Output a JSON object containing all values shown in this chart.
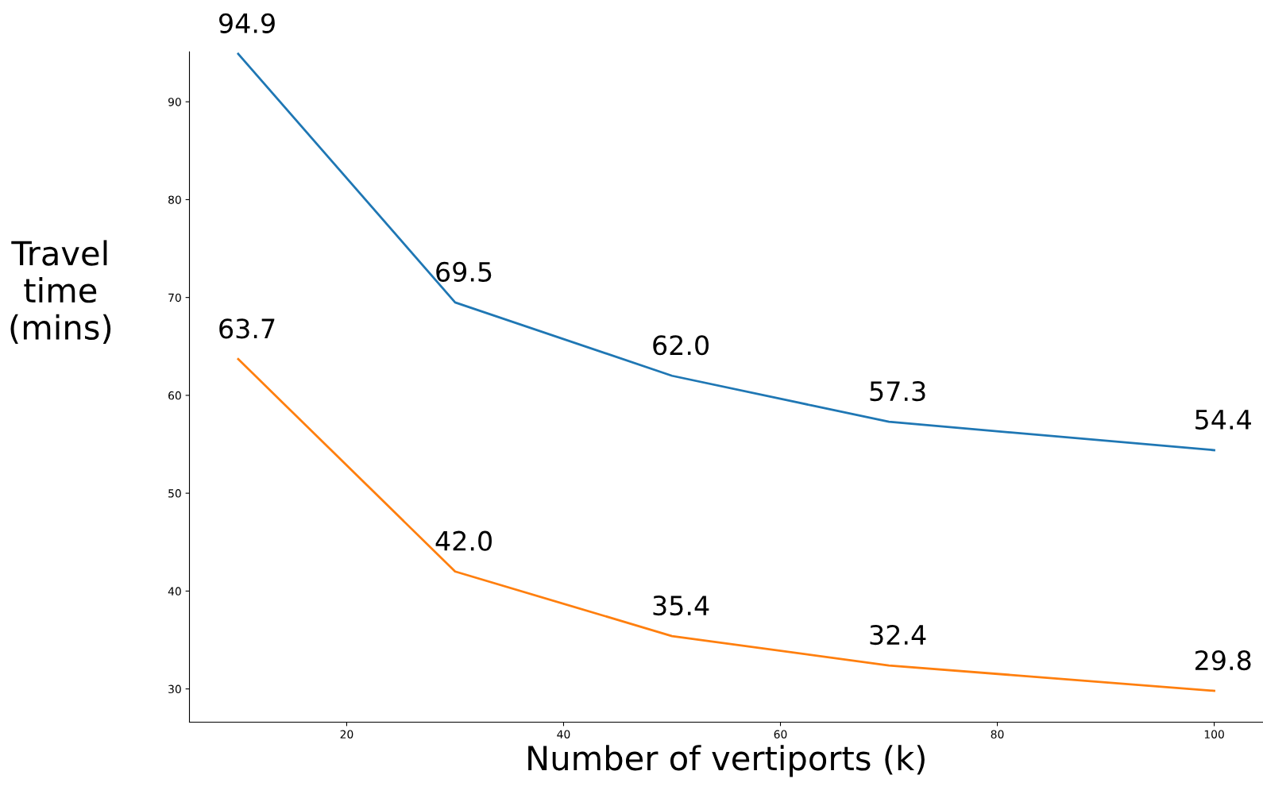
{
  "chart_data": {
    "type": "line",
    "xlabel": "Number of vertiports (k)",
    "ylabel": "Travel\ntime\n(mins)",
    "x": [
      10,
      30,
      50,
      70,
      100
    ],
    "series": [
      {
        "color": "#1f77b4",
        "values": [
          94.9,
          69.5,
          62.0,
          57.3,
          54.4
        ],
        "value_labels": [
          "94.9",
          "69.5",
          "62.0",
          "57.3",
          "54.4"
        ]
      },
      {
        "color": "#ff7f0e",
        "values": [
          63.7,
          42.0,
          35.4,
          32.4,
          29.8
        ],
        "value_labels": [
          "63.7",
          "42.0",
          "35.4",
          "32.4",
          "29.8"
        ]
      }
    ],
    "xlim": [
      5.5,
      104.5
    ],
    "ylim": [
      26.6,
      95.1
    ],
    "xticks": [
      20,
      40,
      60,
      80,
      100
    ],
    "yticks": [
      30,
      40,
      50,
      60,
      70,
      80,
      90
    ],
    "grid": false,
    "marker": "none",
    "line_style": "solid"
  }
}
